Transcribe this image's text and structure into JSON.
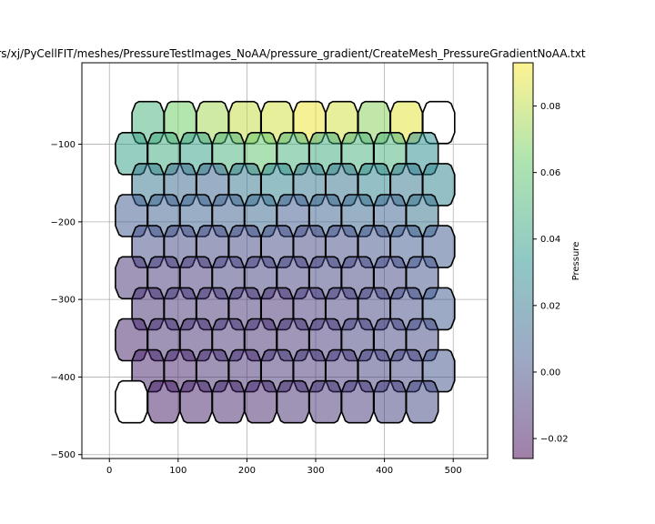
{
  "chart_data": {
    "type": "heatmap",
    "title": "rs/xj/PyCellFIT/meshes/PressureTestImages_NoAA/pressure_gradient/CreateMesh_PressureGradientNoAA.txt",
    "xlabel": "",
    "ylabel": "",
    "xlim": [
      -40,
      550
    ],
    "ylim": [
      -505,
      5
    ],
    "x_ticks": [
      0,
      100,
      200,
      300,
      400,
      500
    ],
    "y_ticks": [
      -100,
      -200,
      -300,
      -400,
      -500
    ],
    "x_tick_labels": [
      "0",
      "100",
      "200",
      "300",
      "400",
      "500"
    ],
    "y_tick_labels": [
      "−100",
      "−200",
      "−300",
      "−400",
      "−500"
    ],
    "grid": true,
    "colorbar": {
      "label": "Pressure",
      "colormap": "viridis",
      "alpha": 0.5,
      "vmin": -0.026,
      "vmax": 0.093,
      "ticks": [
        0.08,
        0.06,
        0.04,
        0.02,
        0.0,
        -0.02
      ],
      "tick_labels": [
        "0.08",
        "0.06",
        "0.04",
        "0.02",
        "0.00",
        "−0.02"
      ]
    },
    "cells": {
      "rows": [
        {
          "y": -72,
          "x0": 56,
          "values": [
            0.05,
            0.065,
            0.075,
            0.082,
            0.085,
            0.09,
            0.085,
            0.07,
            0.088,
            null
          ]
        },
        {
          "y": -112,
          "x0": 32,
          "values": [
            0.04,
            0.045,
            0.04,
            0.05,
            0.06,
            0.05,
            0.045,
            0.05,
            0.05,
            0.03
          ]
        },
        {
          "y": -152,
          "x0": 56,
          "values": [
            0.02,
            0.012,
            0.01,
            0.02,
            0.025,
            0.02,
            0.018,
            0.025,
            0.02,
            0.025
          ]
        },
        {
          "y": -192,
          "x0": 32,
          "values": [
            0.005,
            0.008,
            0.01,
            0.008,
            0.012,
            0.005,
            0.01,
            0.012,
            0.01,
            0.018
          ]
        },
        {
          "y": -232,
          "x0": 56,
          "values": [
            0.0,
            -0.002,
            -0.002,
            -0.002,
            0.0,
            -0.002,
            0.0,
            0.002,
            0.005,
            0.005
          ]
        },
        {
          "y": -272,
          "x0": 32,
          "values": [
            -0.01,
            -0.008,
            -0.008,
            -0.005,
            -0.005,
            -0.005,
            -0.004,
            -0.004,
            -0.002,
            0.002
          ]
        },
        {
          "y": -312,
          "x0": 56,
          "values": [
            -0.012,
            -0.01,
            -0.01,
            -0.01,
            -0.012,
            -0.008,
            -0.006,
            -0.004,
            0.0,
            0.005
          ]
        },
        {
          "y": -352,
          "x0": 32,
          "values": [
            -0.015,
            -0.012,
            -0.012,
            -0.01,
            -0.012,
            -0.01,
            -0.008,
            -0.005,
            -0.004,
            -0.002
          ]
        },
        {
          "y": -392,
          "x0": 56,
          "values": [
            -0.015,
            -0.015,
            -0.012,
            -0.012,
            -0.01,
            -0.01,
            -0.008,
            -0.005,
            -0.004,
            0.002
          ]
        },
        {
          "y": -432,
          "x0": 32,
          "values": [
            null,
            -0.018,
            -0.015,
            -0.014,
            -0.014,
            -0.012,
            -0.01,
            -0.008,
            -0.005,
            -0.002
          ]
        }
      ],
      "cell_dx": 47
    }
  }
}
